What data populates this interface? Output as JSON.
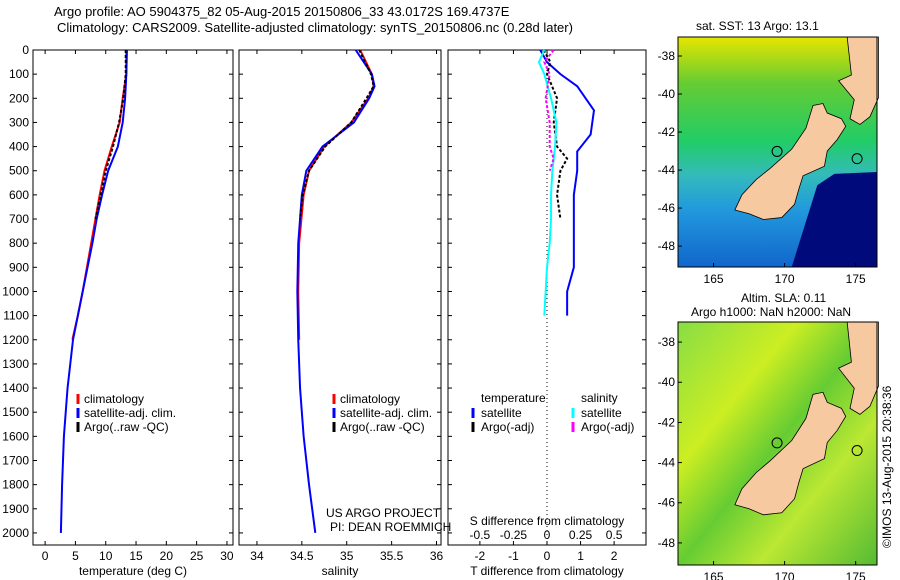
{
  "title_line1": "Argo profile: AO 5904375_82 05-Aug-2015 20150806_33 43.0172S 169.4737E",
  "title_line2": "Climatology: CARS2009. Satellite-adjusted climatology: synTS_20150806.nc (0.28d later)",
  "credit_line1": "US ARGO PROJECT",
  "credit_line2": "PI: DEAN ROEMMICH",
  "imos_stamp": "©IMOS 13-Aug-2015 20:38:36",
  "colors": {
    "climatology": "#ff0000",
    "satellite": "#0000ff",
    "argo": "#000000",
    "salinity_sat": "#00ffff",
    "salinity_argo": "#ff00ff",
    "land": "#f7c9a1"
  },
  "chart_data": [
    {
      "type": "line",
      "name": "temperature",
      "xlabel": "temperature (deg C)",
      "xlim": [
        -2,
        31
      ],
      "ylim": [
        0,
        2050
      ],
      "yticks": [
        0,
        100,
        200,
        300,
        400,
        500,
        600,
        700,
        800,
        900,
        1000,
        1100,
        1200,
        1300,
        1400,
        1500,
        1600,
        1700,
        1800,
        1900,
        2000
      ],
      "xticks": [
        0,
        5,
        10,
        15,
        20,
        25,
        30
      ],
      "legend": [
        "climatology",
        "satellite-adj. clim.",
        "Argo(..raw -QC)"
      ],
      "series": [
        {
          "name": "climatology",
          "color": "#ff0000",
          "depth": [
            0,
            100,
            200,
            300,
            400,
            500,
            600,
            700,
            800,
            900,
            1000,
            1100,
            1200
          ],
          "values": [
            13.4,
            13.4,
            12.8,
            12.3,
            11.0,
            9.8,
            9.0,
            8.3,
            7.6,
            6.9,
            6.2,
            5.4,
            4.5
          ]
        },
        {
          "name": "satellite-adj. clim.",
          "color": "#0000ff",
          "depth": [
            0,
            100,
            200,
            300,
            400,
            500,
            600,
            700,
            800,
            900,
            1000,
            1100,
            1200,
            1400,
            1600,
            1800,
            2000
          ],
          "values": [
            13.5,
            13.4,
            13.2,
            12.8,
            12.0,
            10.4,
            9.4,
            8.5,
            7.8,
            7.0,
            6.2,
            5.4,
            4.6,
            3.7,
            3.1,
            2.8,
            2.6
          ]
        },
        {
          "name": "Argo(..raw -QC)",
          "color": "#000000",
          "depth": [
            0,
            100,
            200,
            300,
            400,
            500,
            600,
            700
          ],
          "values": [
            13.3,
            13.3,
            12.9,
            12.2,
            11.2,
            10.0,
            9.2,
            8.3
          ]
        }
      ]
    },
    {
      "type": "line",
      "name": "salinity",
      "xlabel": "salinity",
      "xlim": [
        33.8,
        36.05
      ],
      "ylim": [
        0,
        2050
      ],
      "xticks": [
        34,
        34.5,
        35,
        35.5,
        36
      ],
      "legend": [
        "climatology",
        "satellite-adj. clim.",
        "Argo(..raw -QC)"
      ],
      "series": [
        {
          "name": "climatology",
          "color": "#ff0000",
          "depth": [
            0,
            100,
            150,
            200,
            300,
            400,
            500,
            600,
            800,
            1000,
            1200
          ],
          "values": [
            35.15,
            35.28,
            35.3,
            35.24,
            35.05,
            34.75,
            34.58,
            34.52,
            34.47,
            34.46,
            34.47
          ]
        },
        {
          "name": "satellite-adj. clim.",
          "color": "#0000ff",
          "depth": [
            0,
            100,
            150,
            200,
            300,
            400,
            500,
            600,
            800,
            1000,
            1200,
            1400,
            1600,
            1800,
            2000
          ],
          "values": [
            35.1,
            35.28,
            35.31,
            35.25,
            35.08,
            34.73,
            34.55,
            34.5,
            34.46,
            34.45,
            34.46,
            34.48,
            34.52,
            34.58,
            34.65
          ]
        },
        {
          "name": "Argo(..raw -QC)",
          "color": "#000000",
          "depth": [
            0,
            100,
            150,
            200,
            300,
            400,
            500,
            600,
            700
          ],
          "values": [
            35.14,
            35.27,
            35.3,
            35.22,
            35.05,
            34.76,
            34.58,
            34.51,
            34.48
          ]
        }
      ]
    },
    {
      "type": "line",
      "name": "difference",
      "xlabel": "T difference from climatology",
      "x2label": "S difference from climatology",
      "xlim": [
        -2.95,
        2.95
      ],
      "ylim": [
        0,
        2050
      ],
      "xticks": [
        -2,
        -1,
        0,
        1,
        2
      ],
      "x2ticks": [
        "-0.5",
        "-0.25",
        "0",
        "0.25",
        "0.5"
      ],
      "legend_headers": [
        "temperature",
        "salinity"
      ],
      "legend": [
        "satellite",
        "Argo(-adj)",
        "satellite",
        "Argo(-adj)"
      ],
      "series": [
        {
          "name": "T satellite",
          "color": "#0000ff",
          "depth": [
            0,
            50,
            100,
            150,
            250,
            350,
            420,
            500,
            600,
            700,
            800,
            900,
            1000,
            1050,
            1100
          ],
          "values": [
            -0.2,
            0.0,
            0.4,
            0.9,
            1.4,
            1.3,
            0.9,
            0.9,
            0.8,
            0.8,
            0.8,
            0.8,
            0.6,
            0.6,
            0.6
          ]
        },
        {
          "name": "T Argo(-adj)",
          "color": "#000000",
          "depth": [
            0,
            50,
            100,
            200,
            300,
            400,
            450,
            500,
            600,
            700
          ],
          "values": [
            -0.1,
            0.1,
            0.0,
            0.3,
            0.2,
            0.3,
            0.6,
            0.4,
            0.3,
            0.4
          ]
        },
        {
          "name": "S satellite",
          "color": "#00ffff",
          "depth": [
            0,
            50,
            100,
            200,
            300,
            400,
            500,
            600,
            700,
            800,
            900,
            1000,
            1100
          ],
          "values": [
            -0.02,
            -0.06,
            -0.02,
            0.03,
            0.07,
            0.06,
            0.04,
            0.03,
            0.03,
            0.02,
            0.0,
            -0.01,
            -0.02
          ]
        },
        {
          "name": "S Argo(-adj)",
          "color": "#ff00ff",
          "depth": [
            0,
            50,
            100,
            200,
            300,
            400,
            450,
            500
          ],
          "values": [
            0.05,
            -0.02,
            0.02,
            -0.01,
            0.02,
            0.02,
            0.05,
            0.02
          ]
        }
      ]
    },
    {
      "type": "heatmap",
      "name": "sst-map",
      "title": "sat. SST: 13 Argo: 13.1",
      "xticks": [
        165,
        170,
        175
      ],
      "yticks": [
        -38,
        -40,
        -42,
        -44,
        -46,
        -48
      ],
      "xlim": [
        162.5,
        176.5
      ],
      "ylim": [
        -49.1,
        -37
      ]
    },
    {
      "type": "heatmap",
      "name": "sla-map",
      "title_line1": "Altim. SLA: 0.11",
      "title_line2": "Argo h1000: NaN h2000: NaN",
      "xticks": [
        165,
        170,
        175
      ],
      "yticks": [
        -38,
        -40,
        -42,
        -44,
        -46,
        -48
      ],
      "xlim": [
        162.5,
        176.5
      ],
      "ylim": [
        -49.1,
        -37
      ]
    }
  ],
  "argo_position": {
    "lon": 169.47,
    "lat": -43.02
  }
}
